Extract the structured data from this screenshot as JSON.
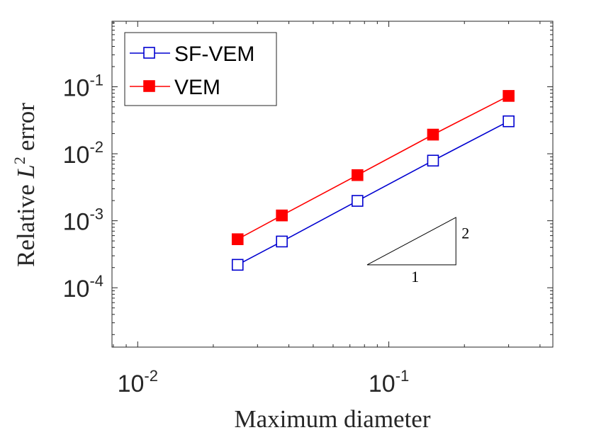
{
  "chart_data": {
    "type": "line",
    "xscale": "log",
    "yscale": "log",
    "xlabel": "Maximum diameter",
    "ylabel_text": "Relative",
    "ylabel_var": "L",
    "ylabel_sup": "2",
    "ylabel_suffix": "error",
    "xlim": [
      0.0079,
      0.45
    ],
    "ylim": [
      1.3e-05,
      0.95
    ],
    "xticks": [
      {
        "value": 0.01,
        "base": "10",
        "exp": "-2"
      },
      {
        "value": 0.1,
        "base": "10",
        "exp": "-1"
      }
    ],
    "yticks": [
      {
        "value": 0.0001,
        "base": "10",
        "exp": "-4"
      },
      {
        "value": 0.001,
        "base": "10",
        "exp": "-3"
      },
      {
        "value": 0.01,
        "base": "10",
        "exp": "-2"
      },
      {
        "value": 0.1,
        "base": "10",
        "exp": "-1"
      }
    ],
    "series": [
      {
        "name": "SF-VEM",
        "color": "#0000d0",
        "marker": "open-square",
        "x": [
          0.025,
          0.0375,
          0.075,
          0.15,
          0.3
        ],
        "y": [
          0.00022,
          0.00049,
          0.00198,
          0.0079,
          0.0305
        ]
      },
      {
        "name": "VEM",
        "color": "#ff0000",
        "marker": "filled-square",
        "x": [
          0.025,
          0.0375,
          0.075,
          0.15,
          0.3
        ],
        "y": [
          0.00053,
          0.0012,
          0.0048,
          0.0193,
          0.073
        ]
      }
    ],
    "legend_location": "top-left",
    "slope_triangle": {
      "x_start": 0.082,
      "x_end": 0.185,
      "y_base": 0.00022,
      "slope": 2,
      "run_label": "1",
      "rise_label": "2"
    }
  }
}
